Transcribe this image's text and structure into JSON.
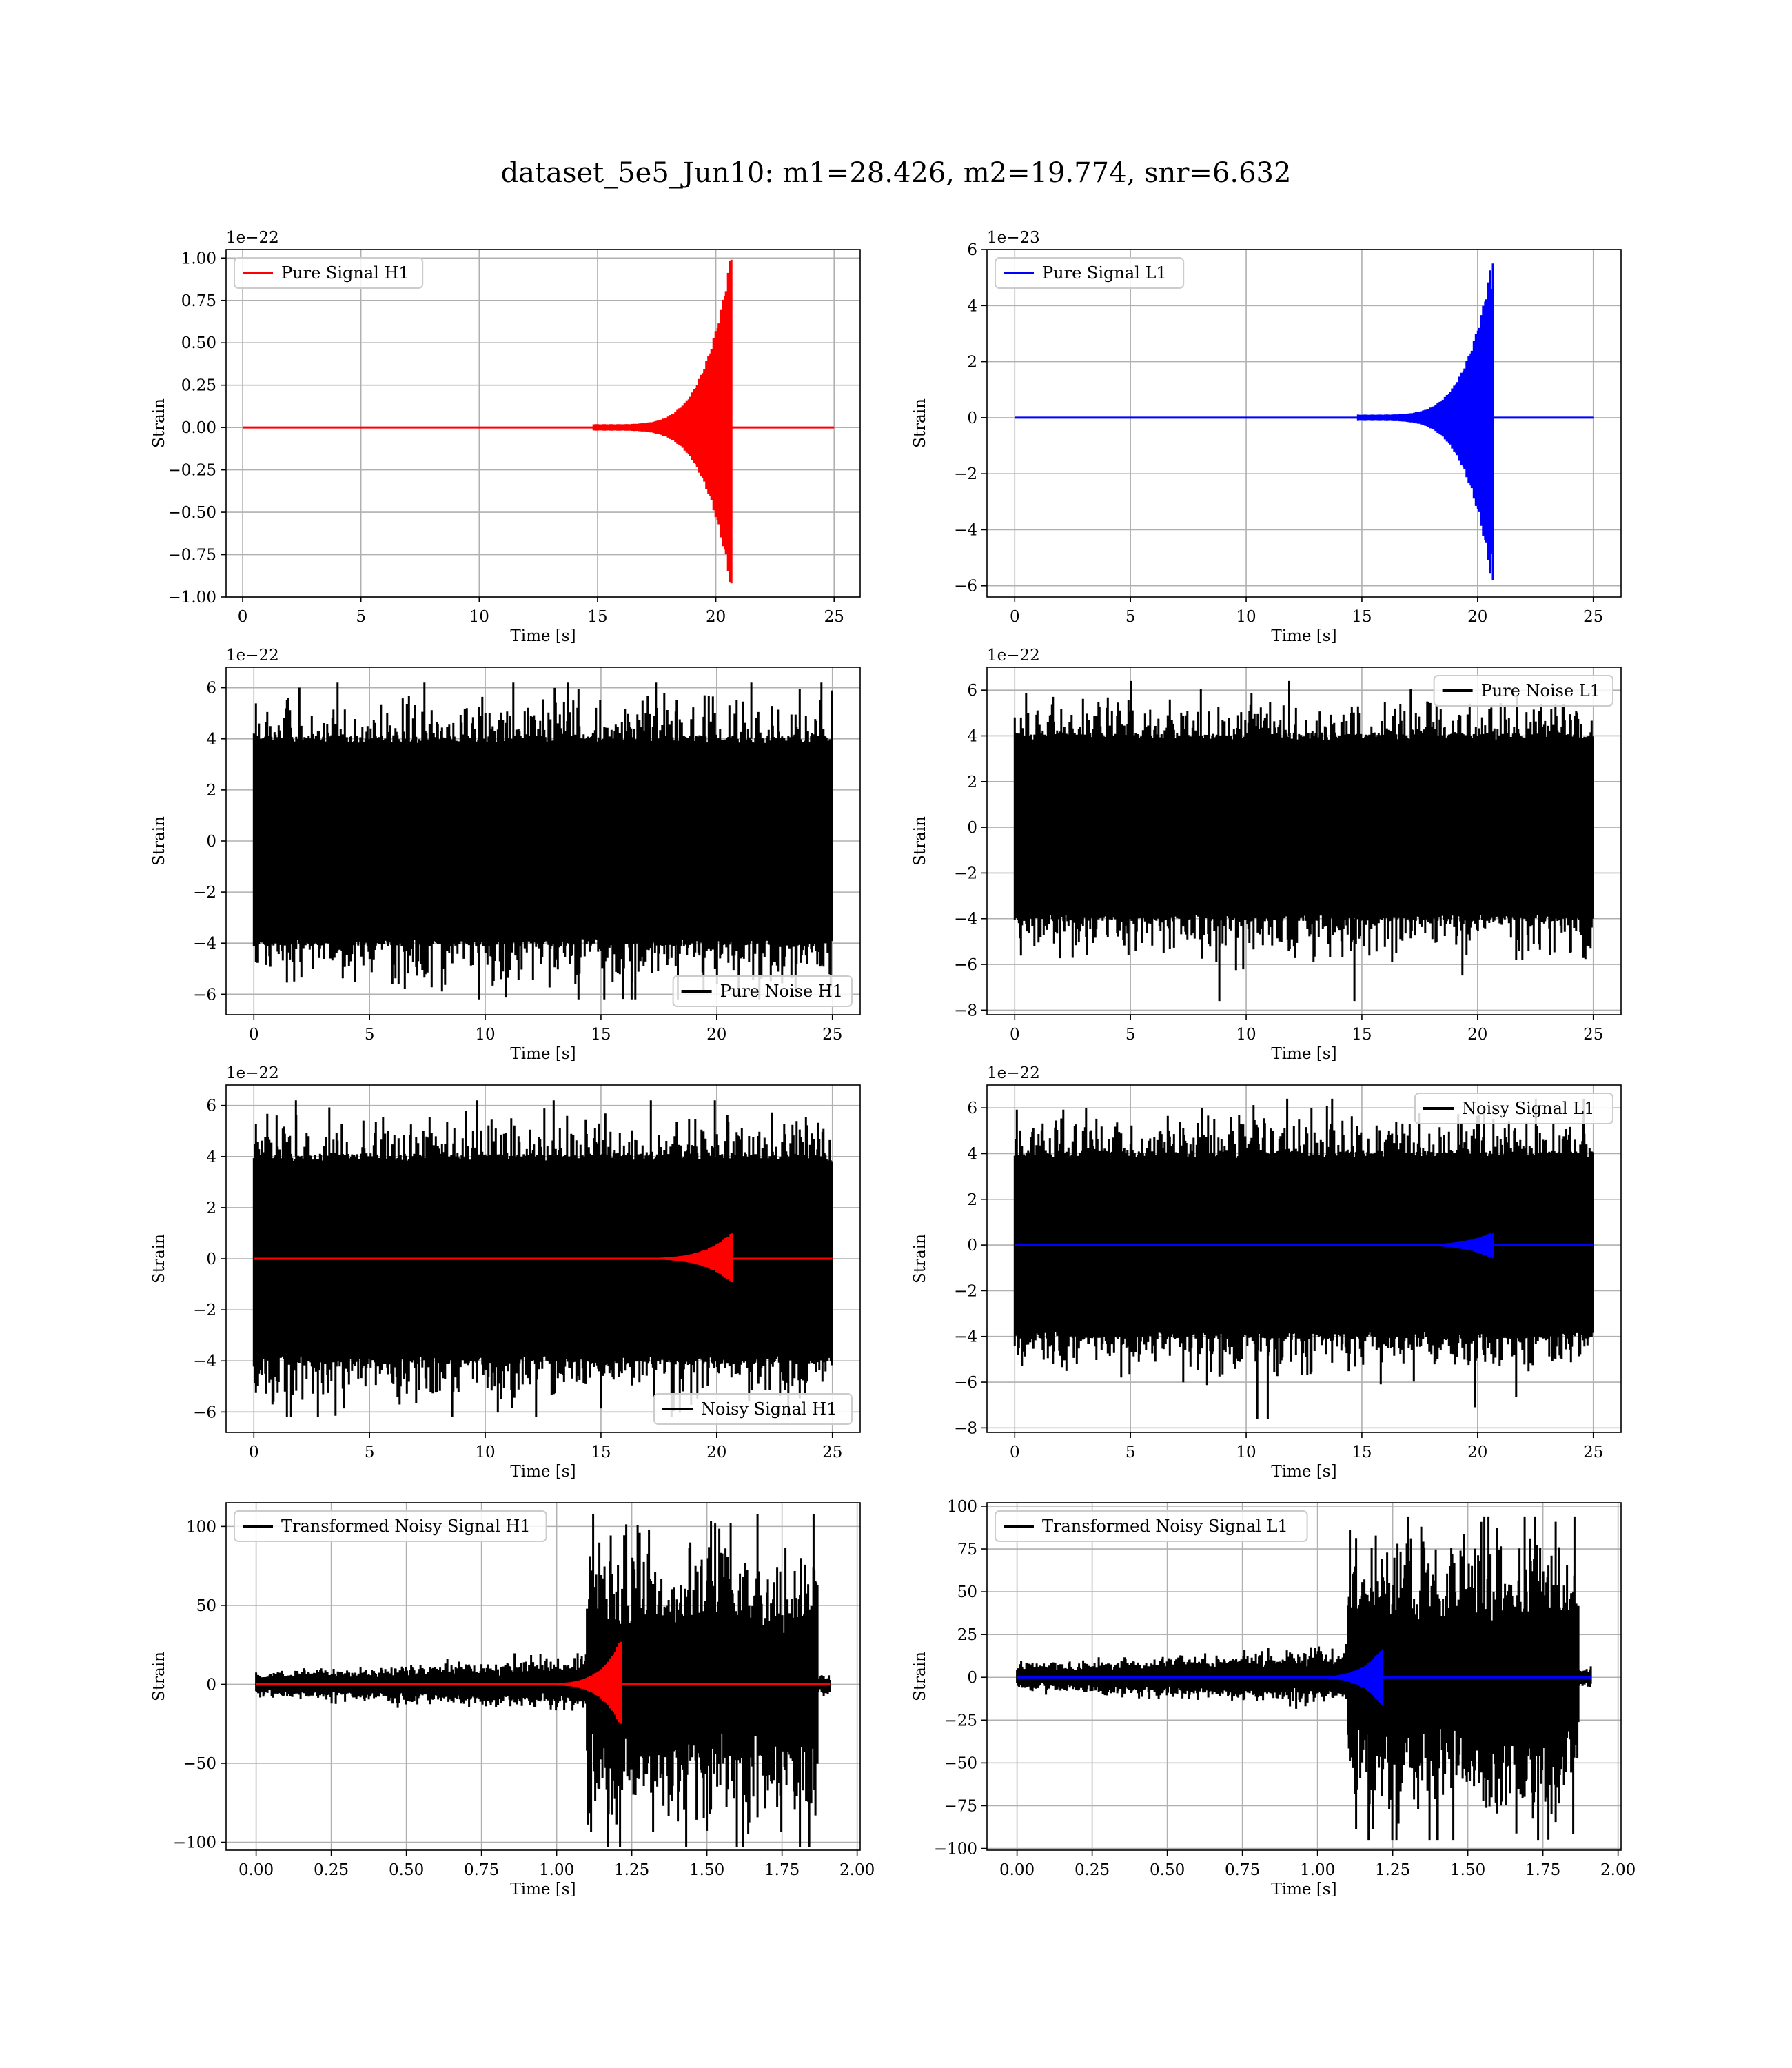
{
  "figure": {
    "title": "dataset_5e5_Jun10: m1=28.426, m2=19.774, snr=6.632"
  },
  "colors": {
    "h1": "#ff0000",
    "l1": "#0000ff",
    "noise": "#000000",
    "grid": "#b0b0b0"
  },
  "chart_data": [
    {
      "id": "pure-signal-h1",
      "type": "line",
      "title": "",
      "xlabel": "Time [s]",
      "ylabel": "Strain",
      "y_offset_text": "1e−22",
      "xlim": [
        -0.7,
        26.1
      ],
      "ylim": [
        -1.0,
        1.05
      ],
      "xticks": [
        0,
        5,
        10,
        15,
        20,
        25
      ],
      "xtick_labels": [
        "0",
        "5",
        "10",
        "15",
        "20",
        "25"
      ],
      "yticks": [
        -1.0,
        -0.75,
        -0.5,
        -0.25,
        0,
        0.25,
        0.5,
        0.75,
        1.0
      ],
      "ytick_labels": [
        "−1.00",
        "−0.75",
        "−0.50",
        "−0.25",
        "0.00",
        "0.25",
        "0.50",
        "0.75",
        "1.00"
      ],
      "grid": true,
      "legend": "upper left",
      "series": [
        {
          "name": "Pure Signal H1",
          "color": "#ff0000",
          "kind": "chirp",
          "x_range": [
            0,
            25
          ],
          "merger_time": 20.6,
          "peak_pos": 0.99,
          "peak_neg": -0.92
        }
      ]
    },
    {
      "id": "pure-signal-l1",
      "type": "line",
      "title": "",
      "xlabel": "Time [s]",
      "ylabel": "Strain",
      "y_offset_text": "1e−23",
      "xlim": [
        -1.2,
        26.2
      ],
      "ylim": [
        -6.4,
        6.0
      ],
      "xticks": [
        0,
        5,
        10,
        15,
        20,
        25
      ],
      "xtick_labels": [
        "0",
        "5",
        "10",
        "15",
        "20",
        "25"
      ],
      "yticks": [
        -6,
        -4,
        -2,
        0,
        2,
        4,
        6
      ],
      "ytick_labels": [
        "−6",
        "−4",
        "−2",
        "0",
        "2",
        "4",
        "6"
      ],
      "grid": true,
      "legend": "upper left",
      "series": [
        {
          "name": "Pure Signal L1",
          "color": "#0000ff",
          "kind": "chirp",
          "x_range": [
            0,
            25
          ],
          "merger_time": 20.6,
          "peak_pos": 5.5,
          "peak_neg": -5.8
        }
      ]
    },
    {
      "id": "pure-noise-h1",
      "type": "line",
      "title": "",
      "xlabel": "Time [s]",
      "ylabel": "Strain",
      "y_offset_text": "1e−22",
      "xlim": [
        -1.2,
        26.2
      ],
      "ylim": [
        -6.8,
        6.8
      ],
      "xticks": [
        0,
        5,
        10,
        15,
        20,
        25
      ],
      "xtick_labels": [
        "0",
        "5",
        "10",
        "15",
        "20",
        "25"
      ],
      "yticks": [
        -6,
        -4,
        -2,
        0,
        2,
        4,
        6
      ],
      "ytick_labels": [
        "−6",
        "−4",
        "−2",
        "0",
        "2",
        "4",
        "6"
      ],
      "grid": true,
      "legend": "lower right",
      "series": [
        {
          "name": "Pure Noise H1",
          "color": "#000000",
          "kind": "noise",
          "x_range": [
            0,
            25
          ],
          "envelope": [
            -4.0,
            4.0
          ],
          "max": 6.2,
          "min": -6.2
        }
      ]
    },
    {
      "id": "pure-noise-l1",
      "type": "line",
      "title": "",
      "xlabel": "Time [s]",
      "ylabel": "Strain",
      "y_offset_text": "1e−22",
      "xlim": [
        -1.2,
        26.2
      ],
      "ylim": [
        -8.2,
        7.0
      ],
      "xticks": [
        0,
        5,
        10,
        15,
        20,
        25
      ],
      "xtick_labels": [
        "0",
        "5",
        "10",
        "15",
        "20",
        "25"
      ],
      "yticks": [
        -8,
        -6,
        -4,
        -2,
        0,
        2,
        4,
        6
      ],
      "ytick_labels": [
        "−8",
        "−6",
        "−4",
        "−2",
        "0",
        "2",
        "4",
        "6"
      ],
      "grid": true,
      "legend": "upper right",
      "series": [
        {
          "name": "Pure Noise L1",
          "color": "#000000",
          "kind": "noise",
          "x_range": [
            0,
            25
          ],
          "envelope": [
            -4.0,
            4.0
          ],
          "max": 6.4,
          "min": -7.6
        }
      ]
    },
    {
      "id": "noisy-signal-h1",
      "type": "line",
      "title": "",
      "xlabel": "Time [s]",
      "ylabel": "Strain",
      "y_offset_text": "1e−22",
      "xlim": [
        -1.2,
        26.2
      ],
      "ylim": [
        -6.8,
        6.8
      ],
      "xticks": [
        0,
        5,
        10,
        15,
        20,
        25
      ],
      "xtick_labels": [
        "0",
        "5",
        "10",
        "15",
        "20",
        "25"
      ],
      "yticks": [
        -6,
        -4,
        -2,
        0,
        2,
        4,
        6
      ],
      "ytick_labels": [
        "−6",
        "−4",
        "−2",
        "0",
        "2",
        "4",
        "6"
      ],
      "grid": true,
      "legend": "lower right",
      "series": [
        {
          "name": "Noisy Signal H1",
          "color": "#000000",
          "kind": "noise",
          "x_range": [
            0,
            25
          ],
          "envelope": [
            -4.0,
            4.0
          ],
          "max": 6.2,
          "min": -6.2
        },
        {
          "name": "",
          "color": "#ff0000",
          "kind": "chirp",
          "x_range": [
            0,
            25
          ],
          "merger_time": 20.6,
          "peak_pos": 0.99,
          "peak_neg": -0.92
        }
      ]
    },
    {
      "id": "noisy-signal-l1",
      "type": "line",
      "title": "",
      "xlabel": "Time [s]",
      "ylabel": "Strain",
      "y_offset_text": "1e−22",
      "xlim": [
        -1.2,
        26.2
      ],
      "ylim": [
        -8.2,
        7.0
      ],
      "xticks": [
        0,
        5,
        10,
        15,
        20,
        25
      ],
      "xtick_labels": [
        "0",
        "5",
        "10",
        "15",
        "20",
        "25"
      ],
      "yticks": [
        -8,
        -6,
        -4,
        -2,
        0,
        2,
        4,
        6
      ],
      "ytick_labels": [
        "−8",
        "−6",
        "−4",
        "−2",
        "0",
        "2",
        "4",
        "6"
      ],
      "grid": true,
      "legend": "upper right",
      "series": [
        {
          "name": "Noisy Signal L1",
          "color": "#000000",
          "kind": "noise",
          "x_range": [
            0,
            25
          ],
          "envelope": [
            -4.0,
            4.0
          ],
          "max": 6.4,
          "min": -7.6
        },
        {
          "name": "",
          "color": "#0000ff",
          "kind": "chirp",
          "x_range": [
            0,
            25
          ],
          "merger_time": 20.6,
          "peak_pos": 0.55,
          "peak_neg": -0.58
        }
      ]
    },
    {
      "id": "transformed-noisy-signal-h1",
      "type": "line",
      "title": "",
      "xlabel": "Time [s]",
      "ylabel": "Strain",
      "y_offset_text": "",
      "xlim": [
        -0.1,
        2.01
      ],
      "ylim": [
        -105,
        115
      ],
      "xticks": [
        0,
        0.25,
        0.5,
        0.75,
        1.0,
        1.25,
        1.5,
        1.75,
        2.0
      ],
      "xtick_labels": [
        "0.00",
        "0.25",
        "0.50",
        "0.75",
        "1.00",
        "1.25",
        "1.50",
        "1.75",
        "2.00"
      ],
      "yticks": [
        -100,
        -50,
        0,
        50,
        100
      ],
      "ytick_labels": [
        "−100",
        "−50",
        "0",
        "50",
        "100"
      ],
      "grid": true,
      "legend": "upper left",
      "series": [
        {
          "name": "Transformed Noisy Signal H1",
          "color": "#000000",
          "kind": "whitened",
          "x_range": [
            0,
            1.91
          ],
          "onset": 1.1,
          "taper_end": 1.87,
          "early_amp": 12,
          "late_amp": 65,
          "max": 108,
          "min": -103
        },
        {
          "name": "",
          "color": "#ff0000",
          "kind": "chirp",
          "x_range": [
            0,
            1.91
          ],
          "merger_time": 1.21,
          "peak_pos": 27,
          "peak_neg": -25
        }
      ]
    },
    {
      "id": "transformed-noisy-signal-l1",
      "type": "line",
      "title": "",
      "xlabel": "Time [s]",
      "ylabel": "Strain",
      "y_offset_text": "",
      "xlim": [
        -0.1,
        2.01
      ],
      "ylim": [
        -101,
        102
      ],
      "xticks": [
        0,
        0.25,
        0.5,
        0.75,
        1.0,
        1.25,
        1.5,
        1.75,
        2.0
      ],
      "xtick_labels": [
        "0.00",
        "0.25",
        "0.50",
        "0.75",
        "1.00",
        "1.25",
        "1.50",
        "1.75",
        "2.00"
      ],
      "yticks": [
        -100,
        -75,
        -50,
        -25,
        0,
        25,
        50,
        75,
        100
      ],
      "ytick_labels": [
        "−100",
        "−75",
        "−50",
        "−25",
        "0",
        "25",
        "50",
        "75",
        "100"
      ],
      "grid": true,
      "legend": "upper left",
      "series": [
        {
          "name": "Transformed Noisy Signal L1",
          "color": "#000000",
          "kind": "whitened",
          "x_range": [
            0,
            1.91
          ],
          "onset": 1.1,
          "taper_end": 1.87,
          "early_amp": 12,
          "late_amp": 60,
          "max": 94,
          "min": -95
        },
        {
          "name": "",
          "color": "#0000ff",
          "kind": "chirp",
          "x_range": [
            0,
            1.91
          ],
          "merger_time": 1.21,
          "peak_pos": 16,
          "peak_neg": -16
        }
      ]
    }
  ]
}
